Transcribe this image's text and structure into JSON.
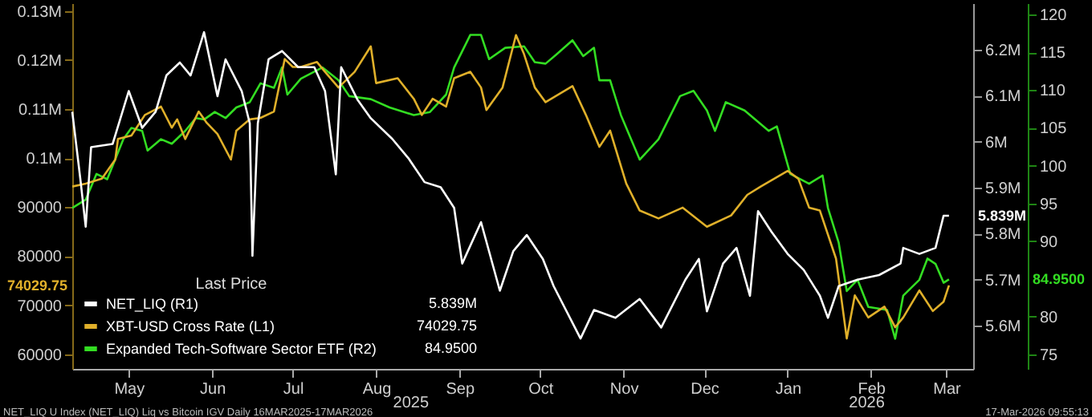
{
  "chart_data": {
    "type": "line",
    "legend": "bottom left",
    "legend_title": "Last Price",
    "xlim": [
      "2025-04-25",
      "2026-03-26"
    ],
    "xticks": [
      {
        "value": "2025-05-16",
        "label": "May"
      },
      {
        "value": "2025-06-16",
        "label": "Jun"
      },
      {
        "value": "2025-07-16",
        "label": "Jul"
      },
      {
        "value": "2025-08-16",
        "label": "Aug"
      },
      {
        "value": "2025-09-16",
        "label": "Sep"
      },
      {
        "value": "2025-10-16",
        "label": "Oct"
      },
      {
        "value": "2025-11-16",
        "label": "Nov"
      },
      {
        "value": "2025-12-16",
        "label": "Dec"
      },
      {
        "value": "2026-01-16",
        "label": "Jan"
      },
      {
        "value": "2026-02-16",
        "label": "Feb"
      },
      {
        "value": "2026-03-16",
        "label": "Mar"
      }
    ],
    "ylim": [
      57000,
      131600
    ],
    "yticks": [
      {
        "value": 60000,
        "label": "60000"
      },
      {
        "value": 70000,
        "label": "70000"
      },
      {
        "value": 80000,
        "label": "80000"
      },
      {
        "value": 90000,
        "label": "90000"
      },
      {
        "value": 100000,
        "label": "0.1M"
      },
      {
        "value": 110000,
        "label": "0.11M"
      },
      {
        "value": 120000,
        "label": "0.12M"
      },
      {
        "value": 130000,
        "label": "0.13M"
      }
    ],
    "y2lim": [
      5506000,
      6301000
    ],
    "y2ticks": [
      {
        "value": 5600000,
        "label": "5.6M"
      },
      {
        "value": 5700000,
        "label": "5.7M"
      },
      {
        "value": 5800000,
        "label": "5.8M"
      },
      {
        "value": 5900000,
        "label": "5.9M"
      },
      {
        "value": 6000000,
        "label": "6M"
      },
      {
        "value": 6100000,
        "label": "6.1M"
      },
      {
        "value": 6200000,
        "label": "6.2M"
      }
    ],
    "y3lim": [
      73.1,
      121.5
    ],
    "y3ticks": [
      75,
      80,
      90,
      95,
      100,
      105,
      110,
      115,
      120
    ],
    "annotations": [
      "2025",
      "2026",
      "NET_LIQ U Index (NET_LIQ) Liq vs Bitcoin IGV Daily 16MAR2025-17MAR2026",
      "17-Mar-2026 09:55:13",
      "5.839M",
      "74029.75",
      "84.9500"
    ],
    "series": [
      {
        "name": "NET_LIQ  (R1)",
        "color": "#ffffff",
        "axis": "y2",
        "x": [
          "2025-04-25",
          "2025-04-28",
          "2025-04-30",
          "2025-05-02",
          "2025-05-10",
          "2025-05-16",
          "2025-05-21",
          "2025-05-26",
          "2025-05-30",
          "2025-06-04",
          "2025-06-08",
          "2025-06-13",
          "2025-06-18",
          "2025-06-21",
          "2025-06-27",
          "2025-06-30",
          "2025-07-01",
          "2025-07-03",
          "2025-07-07",
          "2025-07-12",
          "2025-07-18",
          "2025-07-24",
          "2025-07-28",
          "2025-08-01",
          "2025-08-03",
          "2025-08-09",
          "2025-08-14",
          "2025-08-22",
          "2025-08-28",
          "2025-09-03",
          "2025-09-09",
          "2025-09-14",
          "2025-09-17",
          "2025-09-24",
          "2025-10-01",
          "2025-10-06",
          "2025-10-11",
          "2025-10-17",
          "2025-10-21",
          "2025-10-31",
          "2025-11-05",
          "2025-11-13",
          "2025-11-22",
          "2025-11-30",
          "2025-12-09",
          "2025-12-14",
          "2025-12-17",
          "2025-12-23",
          "2025-12-28",
          "2026-01-02",
          "2026-01-05",
          "2026-01-10",
          "2026-01-16",
          "2026-01-22",
          "2026-01-28",
          "2026-01-31",
          "2026-02-04",
          "2026-02-11",
          "2026-02-19",
          "2026-02-27",
          "2026-02-28",
          "2026-03-06",
          "2026-03-12",
          "2026-03-15",
          "2026-03-17"
        ],
        "values": [
          6065000,
          5919000,
          5815000,
          5988000,
          5995000,
          6110000,
          6030000,
          6065000,
          6144000,
          6172000,
          6144000,
          6238000,
          6099000,
          6179000,
          6110000,
          6040000,
          5752000,
          6040000,
          6179000,
          6197000,
          6162000,
          6162000,
          6110000,
          5929000,
          6162000,
          6092000,
          6051000,
          6006000,
          5964000,
          5912000,
          5901000,
          5856000,
          5735000,
          5825000,
          5676000,
          5762000,
          5797000,
          5745000,
          5686000,
          5572000,
          5634000,
          5617000,
          5658000,
          5596000,
          5700000,
          5745000,
          5631000,
          5735000,
          5769000,
          5665000,
          5849000,
          5804000,
          5756000,
          5721000,
          5665000,
          5617000,
          5686000,
          5700000,
          5710000,
          5735000,
          5769000,
          5756000,
          5769000,
          5839000,
          5839000
        ]
      },
      {
        "name": "XBT-USD Cross Rate  (L1)",
        "color": "#e0b02a",
        "x": [
          "2025-04-25",
          "2025-04-30",
          "2025-05-06",
          "2025-05-11",
          "2025-05-12",
          "2025-05-17",
          "2025-05-22",
          "2025-05-28",
          "2025-06-01",
          "2025-06-03",
          "2025-06-06",
          "2025-06-11",
          "2025-06-14",
          "2025-06-18",
          "2025-06-23",
          "2025-06-25",
          "2025-06-30",
          "2025-07-04",
          "2025-07-09",
          "2025-07-13",
          "2025-07-16",
          "2025-07-19",
          "2025-07-25",
          "2025-07-28",
          "2025-08-02",
          "2025-08-08",
          "2025-08-14",
          "2025-08-16",
          "2025-08-24",
          "2025-08-30",
          "2025-09-02",
          "2025-09-06",
          "2025-09-11",
          "2025-09-14",
          "2025-09-20",
          "2025-09-24",
          "2025-09-26",
          "2025-10-02",
          "2025-10-07",
          "2025-10-10",
          "2025-10-14",
          "2025-10-18",
          "2025-10-28",
          "2025-11-02",
          "2025-11-07",
          "2025-11-11",
          "2025-11-17",
          "2025-11-22",
          "2025-11-29",
          "2025-12-08",
          "2025-12-17",
          "2025-12-26",
          "2026-01-01",
          "2026-01-06",
          "2026-01-16",
          "2026-01-20",
          "2026-01-24",
          "2026-01-28",
          "2026-02-03",
          "2026-02-07",
          "2026-02-10",
          "2026-02-15",
          "2026-02-21",
          "2026-02-25",
          "2026-02-28",
          "2026-03-06",
          "2026-03-11",
          "2026-03-15",
          "2026-03-17"
        ],
        "values": [
          94200,
          94800,
          95800,
          99700,
          103900,
          104600,
          108800,
          110500,
          106200,
          107900,
          103900,
          109500,
          107200,
          104900,
          99700,
          105600,
          107900,
          108200,
          109500,
          120200,
          118600,
          118600,
          119600,
          117600,
          114400,
          117600,
          122800,
          115300,
          116300,
          112100,
          108800,
          112100,
          110500,
          116300,
          117600,
          114400,
          109800,
          114400,
          125100,
          121200,
          114400,
          111400,
          114700,
          108800,
          102300,
          105600,
          94800,
          89300,
          87700,
          89900,
          86000,
          88300,
          92500,
          94200,
          97400,
          95800,
          89900,
          89300,
          79500,
          63200,
          72000,
          67500,
          69700,
          65500,
          67500,
          73000,
          68800,
          70700,
          74029.75
        ]
      },
      {
        "name": "Expanded Tech-Software Sector ETF  (R2)",
        "color": "#33dd22",
        "axis": "y3",
        "x": [
          "2025-04-25",
          "2025-04-30",
          "2025-05-04",
          "2025-05-08",
          "2025-05-14",
          "2025-05-17",
          "2025-05-21",
          "2025-05-23",
          "2025-05-28",
          "2025-06-01",
          "2025-06-06",
          "2025-06-10",
          "2025-06-13",
          "2025-06-17",
          "2025-06-21",
          "2025-06-25",
          "2025-06-30",
          "2025-07-04",
          "2025-07-09",
          "2025-07-12",
          "2025-07-14",
          "2025-07-19",
          "2025-07-27",
          "2025-08-02",
          "2025-08-06",
          "2025-08-14",
          "2025-08-21",
          "2025-08-30",
          "2025-09-05",
          "2025-09-11",
          "2025-09-14",
          "2025-09-20",
          "2025-09-24",
          "2025-09-27",
          "2025-10-03",
          "2025-10-10",
          "2025-10-14",
          "2025-10-18",
          "2025-10-22",
          "2025-10-28",
          "2025-11-01",
          "2025-11-05",
          "2025-11-07",
          "2025-11-11",
          "2025-11-15",
          "2025-11-22",
          "2025-11-29",
          "2025-12-07",
          "2025-12-12",
          "2025-12-17",
          "2025-12-20",
          "2025-12-24",
          "2025-12-31",
          "2026-01-09",
          "2026-01-12",
          "2026-01-17",
          "2026-01-24",
          "2026-01-29",
          "2026-01-31",
          "2026-02-04",
          "2026-02-07",
          "2026-02-11",
          "2026-02-15",
          "2026-02-22",
          "2026-02-25",
          "2026-02-28",
          "2026-03-06",
          "2026-03-09",
          "2026-03-12",
          "2026-03-15",
          "2026-03-17"
        ],
        "values": [
          94.4,
          95.5,
          98.9,
          98.2,
          103.5,
          105.0,
          104.6,
          102.0,
          103.5,
          102.9,
          104.6,
          106.3,
          106.1,
          107.1,
          106.3,
          107.7,
          108.4,
          110.9,
          110.3,
          113.0,
          109.4,
          111.5,
          113.0,
          111.3,
          109.2,
          108.8,
          107.7,
          106.7,
          107.1,
          109.4,
          113.0,
          117.3,
          117.3,
          114.1,
          115.6,
          115.8,
          113.7,
          113.5,
          114.7,
          116.6,
          114.5,
          115.6,
          111.3,
          111.3,
          106.7,
          100.8,
          103.5,
          109.2,
          109.9,
          107.3,
          104.6,
          108.4,
          107.3,
          104.6,
          105.2,
          98.9,
          97.6,
          98.7,
          94.4,
          89.8,
          83.4,
          84.9,
          81.3,
          80.9,
          77.1,
          82.8,
          84.9,
          87.7,
          87.0,
          84.5,
          84.95
        ]
      }
    ]
  }
}
